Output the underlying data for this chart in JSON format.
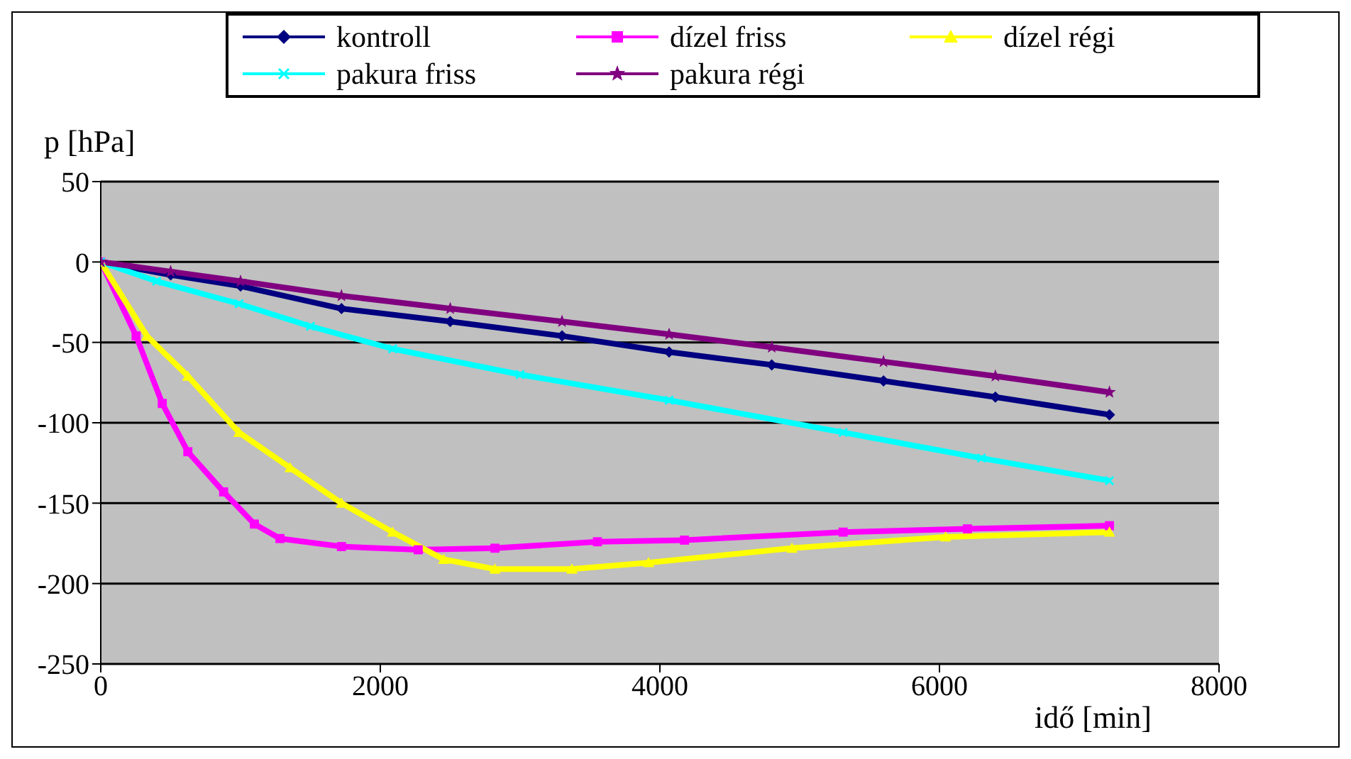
{
  "chart_data": {
    "type": "line",
    "xlabel": "idő [min]",
    "ylabel": "p [hPa]",
    "xlim": [
      0,
      8000
    ],
    "xticks": [
      0,
      2000,
      4000,
      6000,
      8000
    ],
    "ylim": [
      -250,
      50
    ],
    "yticks": [
      50,
      0,
      -50,
      -100,
      -150,
      -200,
      -250
    ],
    "grid": "y",
    "legend": "top",
    "line_style": "solid",
    "series": [
      {
        "name": "kontroll",
        "color": "#000080",
        "marker": "diamond",
        "x": [
          0,
          500,
          1000,
          1722,
          2500,
          3300,
          4066,
          4800,
          5600,
          6400,
          7216
        ],
        "values": [
          0,
          -8,
          -15,
          -29,
          -37,
          -46,
          -56,
          -64,
          -74,
          -84,
          -95
        ]
      },
      {
        "name": "dízel friss",
        "color": "#ff00ff",
        "marker": "square",
        "x": [
          0,
          253,
          440,
          623,
          879,
          1099,
          1282,
          1722,
          2271,
          2820,
          3553,
          4176,
          5311,
          6200,
          7216
        ],
        "values": [
          0,
          -46,
          -88,
          -118,
          -143,
          -163,
          -172,
          -177,
          -179,
          -178,
          -174,
          -173,
          -168,
          -166,
          -164
        ]
      },
      {
        "name": "dízel régi",
        "color": "#ffff00",
        "marker": "triangle",
        "x": [
          0,
          330,
          623,
          989,
          1355,
          1722,
          2088,
          2454,
          2820,
          3370,
          3919,
          4945,
          6044,
          7216
        ],
        "values": [
          0,
          -46,
          -71,
          -106,
          -128,
          -150,
          -168,
          -185,
          -191,
          -191,
          -187,
          -178,
          -171,
          -168
        ]
      },
      {
        "name": "pakura friss",
        "color": "#00ffff",
        "marker": "cross",
        "x": [
          0,
          400,
          989,
          1500,
          2088,
          3000,
          4066,
          5311,
          6300,
          7216
        ],
        "values": [
          0,
          -12,
          -26,
          -40,
          -54,
          -70,
          -86,
          -106,
          -122,
          -136
        ]
      },
      {
        "name": "pakura régi",
        "color": "#800080",
        "marker": "star",
        "x": [
          0,
          500,
          1000,
          1722,
          2500,
          3300,
          4066,
          4800,
          5600,
          6400,
          7216
        ],
        "values": [
          0,
          -6,
          -12,
          -21,
          -29,
          -37,
          -45,
          -53,
          -62,
          -71,
          -81
        ]
      }
    ]
  }
}
